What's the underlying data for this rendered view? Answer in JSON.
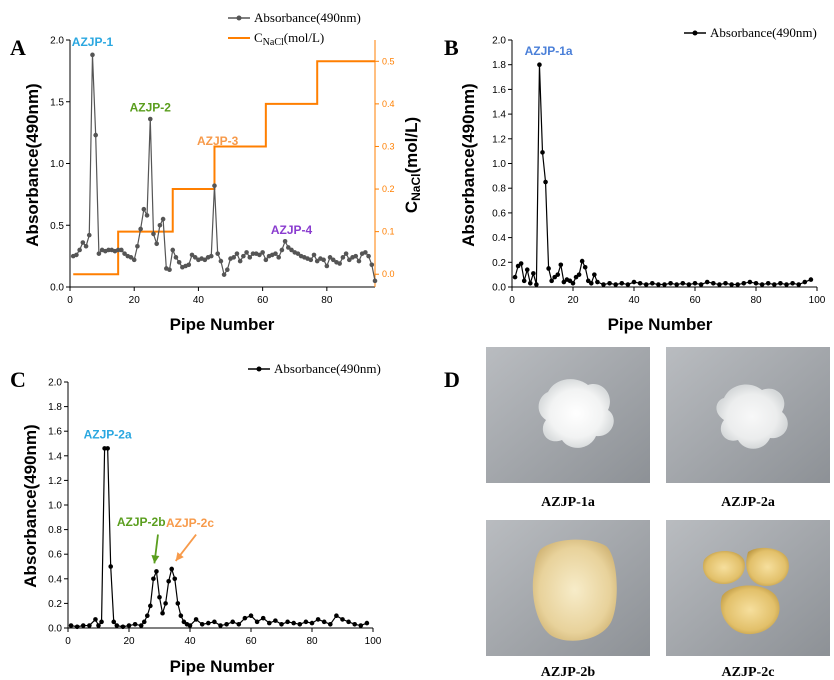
{
  "chart_data": [
    {
      "panel": "A",
      "type": "line",
      "xlabel": "Pipe Number",
      "ylabel": "Absorbance(490nm)",
      "y2label_main": "C",
      "y2label_sub": "NaCl",
      "y2label_tail": "(mol/L)",
      "xlim": [
        0,
        95
      ],
      "ylim": [
        0,
        2.0
      ],
      "y2lim": [
        -0.03,
        0.55
      ],
      "xticks": [
        0,
        20,
        40,
        60,
        80
      ],
      "yticks": [
        "0.0",
        "0.5",
        "1.0",
        "1.5",
        "2.0"
      ],
      "y2ticks": [
        "0.0",
        "0.1",
        "0.2",
        "0.3",
        "0.4",
        "0.5"
      ],
      "grid": false,
      "legend": "top-center",
      "series": [
        {
          "name": "Absorbance(490nm)",
          "color": "#555555",
          "x": [
            1,
            2,
            3,
            4,
            5,
            6,
            7,
            8,
            9,
            10,
            11,
            12,
            13,
            14,
            15,
            16,
            17,
            18,
            19,
            20,
            21,
            22,
            23,
            24,
            25,
            26,
            27,
            28,
            29,
            30,
            31,
            32,
            33,
            34,
            35,
            36,
            37,
            38,
            39,
            40,
            41,
            42,
            43,
            44,
            45,
            46,
            47,
            48,
            49,
            50,
            51,
            52,
            53,
            54,
            55,
            56,
            57,
            58,
            59,
            60,
            61,
            62,
            63,
            64,
            65,
            66,
            67,
            68,
            69,
            70,
            71,
            72,
            73,
            74,
            75,
            76,
            77,
            78,
            79,
            80,
            81,
            82,
            83,
            84,
            85,
            86,
            87,
            88,
            89,
            90,
            91,
            92,
            93,
            94,
            95
          ],
          "y": [
            0.25,
            0.26,
            0.3,
            0.36,
            0.33,
            0.42,
            1.88,
            1.23,
            0.27,
            0.3,
            0.29,
            0.3,
            0.3,
            0.29,
            0.3,
            0.3,
            0.27,
            0.25,
            0.24,
            0.22,
            0.33,
            0.47,
            0.63,
            0.58,
            1.36,
            0.43,
            0.35,
            0.5,
            0.55,
            0.15,
            0.14,
            0.3,
            0.24,
            0.2,
            0.16,
            0.17,
            0.18,
            0.26,
            0.24,
            0.22,
            0.23,
            0.22,
            0.24,
            0.25,
            0.82,
            0.27,
            0.21,
            0.1,
            0.14,
            0.23,
            0.24,
            0.27,
            0.21,
            0.25,
            0.28,
            0.24,
            0.27,
            0.27,
            0.26,
            0.28,
            0.22,
            0.25,
            0.26,
            0.27,
            0.24,
            0.3,
            0.37,
            0.32,
            0.3,
            0.28,
            0.27,
            0.25,
            0.24,
            0.23,
            0.22,
            0.26,
            0.21,
            0.23,
            0.22,
            0.17,
            0.24,
            0.22,
            0.2,
            0.19,
            0.24,
            0.27,
            0.22,
            0.24,
            0.25,
            0.21,
            0.27,
            0.28,
            0.25,
            0.18,
            0.05
          ]
        },
        {
          "name_main": "C",
          "name_sub": "NaCl",
          "name_tail": "(mol/L)",
          "color": "#ff7f00",
          "axis": "right",
          "x": [
            1,
            15,
            15,
            32,
            32,
            45,
            45,
            61,
            61,
            77,
            77,
            95
          ],
          "y": [
            0,
            0,
            0.1,
            0.1,
            0.2,
            0.2,
            0.3,
            0.3,
            0.4,
            0.4,
            0.5,
            0.5
          ]
        }
      ],
      "annotations": [
        {
          "text": "AZJP-1",
          "x": 7,
          "y": 1.95,
          "color": "#2aa7e0"
        },
        {
          "text": "AZJP-2",
          "x": 25,
          "y": 1.42,
          "color": "#5a9e1e"
        },
        {
          "text": "AZJP-3",
          "x": 46,
          "y": 1.15,
          "color": "#f79a4a"
        },
        {
          "text": "AZJP-4",
          "x": 69,
          "y": 0.43,
          "color": "#8a3ccf"
        }
      ]
    },
    {
      "panel": "B",
      "type": "line",
      "xlabel": "Pipe Number",
      "ylabel": "Absorbance(490nm)",
      "xlim": [
        0,
        100
      ],
      "ylim": [
        0,
        2.0
      ],
      "xticks": [
        0,
        20,
        40,
        60,
        80,
        100
      ],
      "yticks": [
        "0.0",
        "0.2",
        "0.4",
        "0.6",
        "0.8",
        "1.0",
        "1.2",
        "1.4",
        "1.6",
        "1.8",
        "2.0"
      ],
      "grid": false,
      "legend": "top-right",
      "series": [
        {
          "name": "Absorbance(490nm)",
          "color": "#000000",
          "x": [
            1,
            2,
            3,
            4,
            5,
            6,
            7,
            8,
            9,
            10,
            11,
            12,
            13,
            14,
            15,
            16,
            17,
            18,
            19,
            20,
            21,
            22,
            23,
            24,
            25,
            26,
            27,
            28,
            30,
            32,
            34,
            36,
            38,
            40,
            42,
            44,
            46,
            48,
            50,
            52,
            54,
            56,
            58,
            60,
            62,
            64,
            66,
            68,
            70,
            72,
            74,
            76,
            78,
            80,
            82,
            84,
            86,
            88,
            90,
            92,
            94,
            96,
            98
          ],
          "y": [
            0.08,
            0.17,
            0.19,
            0.05,
            0.14,
            0.03,
            0.11,
            0.02,
            1.8,
            1.09,
            0.85,
            0.15,
            0.05,
            0.08,
            0.1,
            0.18,
            0.04,
            0.06,
            0.05,
            0.03,
            0.08,
            0.1,
            0.21,
            0.16,
            0.05,
            0.03,
            0.1,
            0.04,
            0.02,
            0.03,
            0.02,
            0.03,
            0.02,
            0.04,
            0.03,
            0.02,
            0.03,
            0.02,
            0.02,
            0.03,
            0.02,
            0.03,
            0.02,
            0.03,
            0.02,
            0.04,
            0.03,
            0.02,
            0.03,
            0.02,
            0.02,
            0.03,
            0.04,
            0.03,
            0.02,
            0.03,
            0.02,
            0.03,
            0.02,
            0.03,
            0.02,
            0.04,
            0.06
          ]
        }
      ],
      "annotations": [
        {
          "text": "AZJP-1a",
          "x": 12,
          "y": 1.88,
          "color": "#4a7fd8"
        }
      ]
    },
    {
      "panel": "C",
      "type": "line",
      "xlabel": "Pipe Number",
      "ylabel": "Absorbance(490nm)",
      "xlim": [
        0,
        100
      ],
      "ylim": [
        0,
        2.0
      ],
      "xticks": [
        0,
        20,
        40,
        60,
        80,
        100
      ],
      "yticks": [
        "0.0",
        "0.2",
        "0.4",
        "0.6",
        "0.8",
        "1.0",
        "1.2",
        "1.4",
        "1.6",
        "1.8",
        "2.0"
      ],
      "grid": false,
      "legend": "top-right",
      "series": [
        {
          "name": "Absorbance(490nm)",
          "color": "#000000",
          "x": [
            1,
            3,
            5,
            7,
            9,
            10,
            11,
            12,
            13,
            14,
            15,
            16,
            18,
            20,
            22,
            24,
            25,
            26,
            27,
            28,
            29,
            30,
            31,
            32,
            33,
            34,
            35,
            36,
            37,
            38,
            39,
            40,
            42,
            44,
            46,
            48,
            50,
            52,
            54,
            56,
            58,
            60,
            62,
            64,
            66,
            68,
            70,
            72,
            74,
            76,
            78,
            80,
            82,
            84,
            86,
            88,
            90,
            92,
            94,
            96,
            98
          ],
          "y": [
            0.02,
            0.01,
            0.02,
            0.02,
            0.07,
            0.02,
            0.05,
            1.46,
            1.46,
            0.5,
            0.05,
            0.02,
            0.01,
            0.02,
            0.03,
            0.02,
            0.05,
            0.1,
            0.18,
            0.4,
            0.46,
            0.25,
            0.12,
            0.2,
            0.38,
            0.48,
            0.4,
            0.2,
            0.1,
            0.05,
            0.03,
            0.02,
            0.07,
            0.03,
            0.04,
            0.05,
            0.02,
            0.03,
            0.05,
            0.03,
            0.08,
            0.1,
            0.05,
            0.08,
            0.04,
            0.06,
            0.03,
            0.05,
            0.04,
            0.03,
            0.05,
            0.04,
            0.07,
            0.05,
            0.03,
            0.1,
            0.07,
            0.05,
            0.03,
            0.02,
            0.04
          ]
        }
      ],
      "annotations": [
        {
          "text": "AZJP-2a",
          "x": 13,
          "y": 1.54,
          "color": "#2aa7e0"
        },
        {
          "text": "AZJP-2b",
          "x": 24,
          "y": 0.83,
          "color": "#5a9e1e"
        },
        {
          "text": "AZJP-2c",
          "x": 40,
          "y": 0.82,
          "color": "#f79a4a"
        }
      ]
    }
  ],
  "panel_d": {
    "letter": "D",
    "photos": [
      {
        "label": "AZJP-1a",
        "tone": "white"
      },
      {
        "label": "AZJP-2a",
        "tone": "white"
      },
      {
        "label": "AZJP-2b",
        "tone": "cream"
      },
      {
        "label": "AZJP-2c",
        "tone": "yellow"
      }
    ]
  }
}
